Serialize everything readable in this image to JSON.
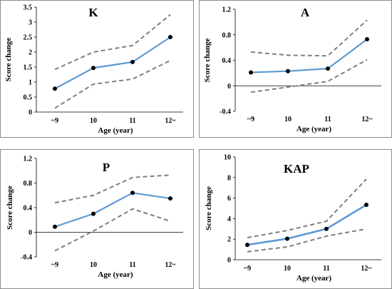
{
  "figure": {
    "background": "#ffffff",
    "border_color": "#8c8c8c"
  },
  "colors": {
    "mean": "#5b9bd5",
    "ci": "#7f7f7f",
    "marker": "#000000"
  },
  "chart_data": [
    {
      "type": "line",
      "title": "K",
      "xlabel": "Age (year)",
      "ylabel": "Score change",
      "categories": [
        "~9",
        "10",
        "11",
        "12~"
      ],
      "ylim": [
        0,
        3.5
      ],
      "yticks": [
        0,
        0.5,
        1,
        1.5,
        2,
        2.5,
        3,
        3.5
      ],
      "ytick_labels": [
        "0",
        "0.5",
        "1",
        "1.5",
        "2",
        "2.5",
        "3",
        "3.5"
      ],
      "grid": false,
      "legend": "none",
      "series": [
        {
          "role": "mean",
          "style": "solid",
          "markers": true,
          "values": [
            0.78,
            1.47,
            1.67,
            2.5
          ]
        },
        {
          "role": "upper",
          "style": "dashed",
          "markers": false,
          "values": [
            1.42,
            2.0,
            2.22,
            3.25
          ]
        },
        {
          "role": "lower",
          "style": "dashed",
          "markers": false,
          "values": [
            0.13,
            0.93,
            1.1,
            1.72
          ]
        }
      ]
    },
    {
      "type": "line",
      "title": "A",
      "xlabel": "Age (year)",
      "ylabel": "Score change",
      "categories": [
        "~9",
        "10",
        "11",
        "12~"
      ],
      "ylim": [
        -0.4,
        1.2
      ],
      "yticks": [
        -0.4,
        0,
        0.4,
        0.8,
        1.2
      ],
      "ytick_labels": [
        "-0.4",
        "0",
        "0.4",
        "0.8",
        "1.2"
      ],
      "grid": false,
      "legend": "none",
      "series": [
        {
          "role": "mean",
          "style": "solid",
          "markers": true,
          "values": [
            0.21,
            0.23,
            0.27,
            0.73
          ]
        },
        {
          "role": "upper",
          "style": "dashed",
          "markers": false,
          "values": [
            0.53,
            0.48,
            0.47,
            1.03
          ]
        },
        {
          "role": "lower",
          "style": "dashed",
          "markers": false,
          "values": [
            -0.1,
            -0.02,
            0.07,
            0.41
          ]
        }
      ]
    },
    {
      "type": "line",
      "title": "P",
      "xlabel": "Age (year)",
      "ylabel": "Score change",
      "categories": [
        "~9",
        "10",
        "11",
        "12~"
      ],
      "ylim": [
        -0.4,
        1.2
      ],
      "yticks": [
        -0.4,
        0,
        0.4,
        0.8,
        1.2
      ],
      "ytick_labels": [
        "-0.4",
        "0",
        "0.4",
        "0.8",
        "1.2"
      ],
      "grid": false,
      "legend": "none",
      "series": [
        {
          "role": "mean",
          "style": "solid",
          "markers": true,
          "values": [
            0.09,
            0.3,
            0.64,
            0.55
          ]
        },
        {
          "role": "upper",
          "style": "dashed",
          "markers": false,
          "values": [
            0.48,
            0.6,
            0.89,
            0.93
          ]
        },
        {
          "role": "lower",
          "style": "dashed",
          "markers": false,
          "values": [
            -0.3,
            0.02,
            0.38,
            0.18
          ]
        }
      ]
    },
    {
      "type": "line",
      "title": "KAP",
      "xlabel": "Age (year)",
      "ylabel": "Score change",
      "categories": [
        "~9",
        "10",
        "11",
        "12~"
      ],
      "ylim": [
        0,
        10
      ],
      "yticks": [
        0,
        2,
        4,
        6,
        8,
        10
      ],
      "ytick_labels": [
        "0",
        "2",
        "4",
        "6",
        "8",
        "10"
      ],
      "grid": false,
      "legend": "none",
      "series": [
        {
          "role": "mean",
          "style": "solid",
          "markers": true,
          "values": [
            1.45,
            2.05,
            3.0,
            5.35
          ]
        },
        {
          "role": "upper",
          "style": "dashed",
          "markers": false,
          "values": [
            2.15,
            2.85,
            3.75,
            7.85
          ]
        },
        {
          "role": "lower",
          "style": "dashed",
          "markers": false,
          "values": [
            0.78,
            1.25,
            2.3,
            3.0
          ]
        }
      ]
    }
  ]
}
